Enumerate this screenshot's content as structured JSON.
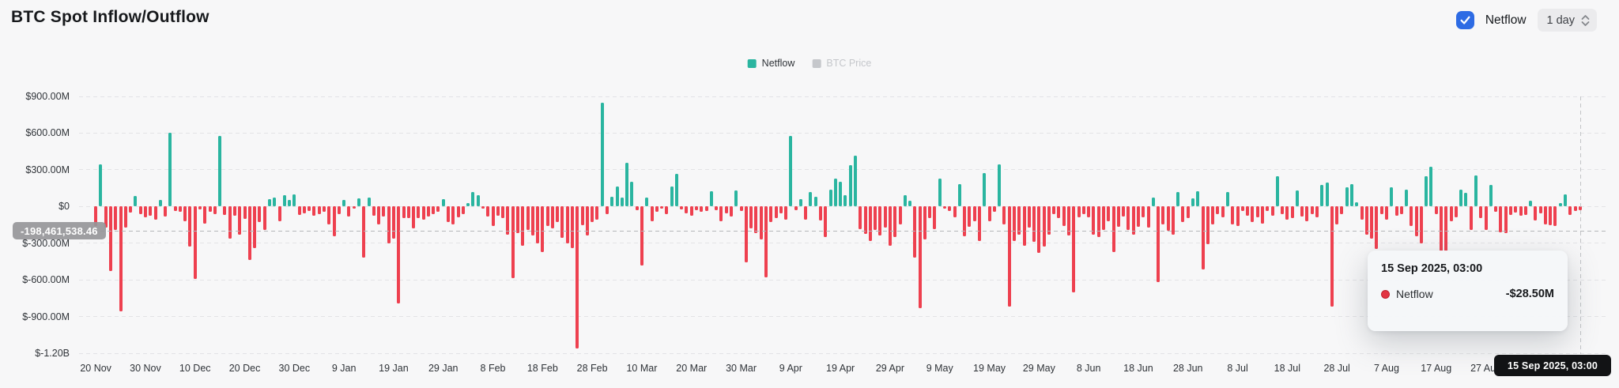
{
  "header": {
    "title": "BTC Spot Inflow/Outflow",
    "netflow_label": "Netflow",
    "interval_value": "1 day"
  },
  "legend": {
    "items": [
      {
        "label": "Netflow",
        "color": "#2ab5a0",
        "active": true
      },
      {
        "label": "BTC Price",
        "color": "#c5c7cb",
        "active": false
      }
    ]
  },
  "y_axis": {
    "labels": [
      "$900.00M",
      "$600.00M",
      "$300.00M",
      "$0",
      "$-300.00M",
      "$-600.00M",
      "$-900.00M",
      "$-1.20B"
    ],
    "crosshair_value": "-198,461,538.46"
  },
  "x_axis": {
    "labels": [
      "20 Nov",
      "30 Nov",
      "10 Dec",
      "20 Dec",
      "30 Dec",
      "9 Jan",
      "19 Jan",
      "29 Jan",
      "8 Feb",
      "18 Feb",
      "28 Feb",
      "10 Mar",
      "20 Mar",
      "30 Mar",
      "9 Apr",
      "19 Apr",
      "29 Apr",
      "9 May",
      "19 May",
      "29 May",
      "8 Jun",
      "18 Jun",
      "28 Jun",
      "8 Jul",
      "18 Jul",
      "28 Jul",
      "7 Aug",
      "17 Aug",
      "27 Aug"
    ],
    "crosshair_label": "15 Sep 2025, 03:00"
  },
  "tooltip": {
    "title": "15 Sep 2025, 03:00",
    "series": "Netflow",
    "value": "-$28.50M",
    "dot_color": "#e23443"
  },
  "chart_data": {
    "type": "bar",
    "title": "BTC Spot Inflow/Outflow",
    "interval": "1 day",
    "unit": "USD millions",
    "start_date": "20 Nov 2024",
    "end_date": "15 Sep 2025",
    "ylim": [
      -1200,
      900
    ],
    "y_ticks_millions": [
      900,
      600,
      300,
      0,
      -300,
      -600,
      -900,
      -1200
    ],
    "grid": "horizontal-dashed",
    "legend_position": "top-center",
    "colors": {
      "positive": "#2ab5a0",
      "negative": "#ee404f"
    },
    "hovered_point": {
      "date": "15 Sep 2025, 03:00",
      "netflow_millions": -28.5
    },
    "values": [
      -160,
      345,
      -170,
      -525,
      -190,
      -855,
      -175,
      -50,
      85,
      -60,
      -90,
      -75,
      -110,
      55,
      -80,
      600,
      -35,
      -45,
      -120,
      -330,
      -590,
      -25,
      -140,
      -45,
      -65,
      580,
      -70,
      -260,
      -75,
      -230,
      -100,
      -440,
      -340,
      -130,
      -195,
      60,
      75,
      -120,
      90,
      55,
      100,
      -70,
      -55,
      -35,
      -75,
      -60,
      -45,
      -150,
      -245,
      -60,
      55,
      -80,
      -20,
      65,
      -420,
      70,
      -75,
      -150,
      -85,
      -300,
      -265,
      -790,
      -95,
      -95,
      -180,
      -95,
      -110,
      -80,
      -60,
      -45,
      60,
      -130,
      -150,
      -90,
      -65,
      30,
      120,
      90,
      -15,
      -85,
      -160,
      -75,
      -95,
      -230,
      -585,
      -215,
      -320,
      -190,
      -235,
      -300,
      -375,
      -160,
      -180,
      -130,
      -255,
      -300,
      -340,
      -1160,
      -155,
      -240,
      -125,
      -110,
      850,
      -60,
      80,
      165,
      75,
      355,
      200,
      -30,
      -480,
      70,
      -120,
      -45,
      -20,
      -65,
      165,
      270,
      -25,
      -55,
      -75,
      -30,
      -45,
      -40,
      125,
      -30,
      -120,
      -55,
      -85,
      130,
      -40,
      -460,
      -180,
      -215,
      -270,
      -580,
      -130,
      -95,
      -55,
      -110,
      580,
      -30,
      60,
      -105,
      115,
      80,
      -115,
      -250,
      140,
      225,
      200,
      95,
      340,
      415,
      -185,
      -225,
      -280,
      -190,
      -240,
      -175,
      -320,
      -250,
      -145,
      95,
      45,
      -420,
      -830,
      -270,
      -95,
      -185,
      230,
      -15,
      -35,
      -90,
      180,
      -245,
      -165,
      -120,
      -280,
      275,
      -120,
      -45,
      345,
      -150,
      -817,
      -280,
      -230,
      -320,
      -170,
      -290,
      -380,
      -330,
      -230,
      -60,
      -95,
      -160,
      -240,
      -700,
      -90,
      -60,
      -90,
      -230,
      -250,
      -190,
      -120,
      -370,
      -165,
      -80,
      -195,
      -230,
      -165,
      -90,
      -175,
      70,
      -620,
      -150,
      -200,
      -230,
      115,
      -130,
      -95,
      65,
      125,
      -515,
      -310,
      -150,
      -65,
      -90,
      120,
      -145,
      -160,
      -35,
      -75,
      -130,
      -90,
      -140,
      -40,
      -75,
      250,
      -65,
      -110,
      -95,
      130,
      -85,
      -120,
      -65,
      -90,
      175,
      195,
      -820,
      -145,
      -60,
      160,
      185,
      35,
      -110,
      -230,
      -260,
      -350,
      -65,
      -105,
      155,
      -75,
      -60,
      135,
      -160,
      -245,
      -300,
      245,
      325,
      -60,
      -365,
      -365,
      -120,
      -90,
      135,
      110,
      -190,
      255,
      -95,
      -190,
      175,
      -45,
      -210,
      -215,
      -70,
      -50,
      -75,
      -70,
      48,
      -115,
      -55,
      -150,
      -155,
      -160,
      25,
      102,
      -72,
      -40,
      -28.5
    ]
  }
}
